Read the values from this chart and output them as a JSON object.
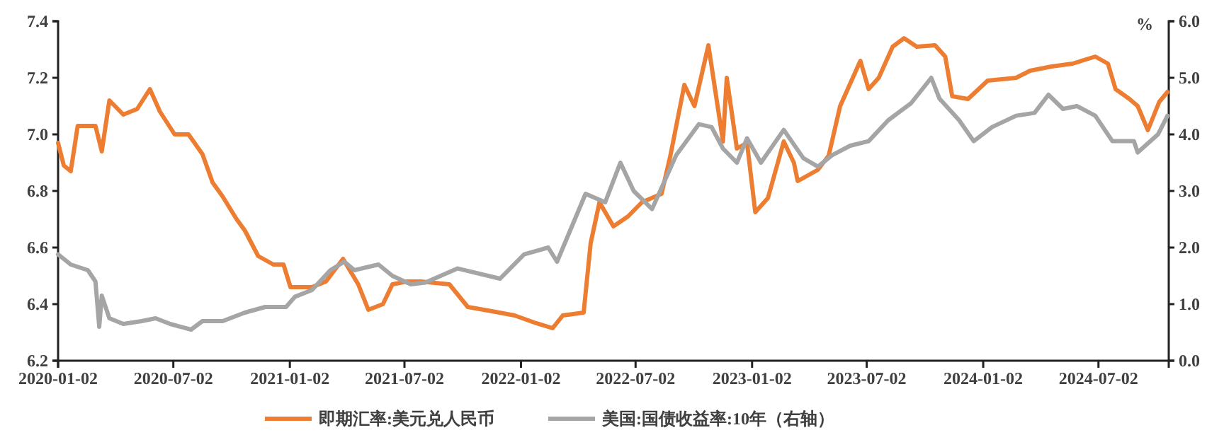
{
  "chart_data": {
    "type": "line",
    "legend": "bottom",
    "grid": false,
    "marker": "none",
    "line_style": "solid",
    "y2label": "%",
    "xlim": [
      "2020-01-02",
      "2024-10-21"
    ],
    "xticks": [
      "2020-01-02",
      "2020-07-02",
      "2021-01-02",
      "2021-07-02",
      "2022-01-02",
      "2022-07-02",
      "2023-01-02",
      "2023-07-02",
      "2024-01-02",
      "2024-07-02"
    ],
    "ylim": [
      6.2,
      7.4
    ],
    "yticks": [
      6.2,
      6.4,
      6.6,
      6.8,
      {
        "value": 7,
        "label": "7.0"
      },
      7.2,
      7.4
    ],
    "y2lim": [
      0,
      6
    ],
    "y2ticks": [
      {
        "value": 0,
        "label": "0.0"
      },
      {
        "value": 1,
        "label": "1.0"
      },
      {
        "value": 2,
        "label": "2.0"
      },
      {
        "value": 3,
        "label": "3.0"
      },
      {
        "value": 4,
        "label": "4.0"
      },
      {
        "value": 5,
        "label": "5.0"
      },
      {
        "value": 6,
        "label": "6.0"
      }
    ],
    "series": [
      {
        "name": "即期汇率:美元兑人民币",
        "color": "#ed7d31",
        "x": [
          "2020-01-02",
          "2020-01-11",
          "2020-01-22",
          "2020-02-02",
          "2020-03-01",
          "2020-03-11",
          "2020-03-23",
          "2020-04-14",
          "2020-05-06",
          "2020-05-26",
          "2020-06-11",
          "2020-07-04",
          "2020-07-26",
          "2020-08-17",
          "2020-09-02",
          "2020-09-18",
          "2020-10-10",
          "2020-10-23",
          "2020-11-13",
          "2020-12-07",
          "2020-12-23",
          "2021-01-03",
          "2021-02-06",
          "2021-02-28",
          "2021-03-27",
          "2021-04-20",
          "2021-05-06",
          "2021-05-29",
          "2021-06-13",
          "2021-07-06",
          "2021-07-28",
          "2021-09-11",
          "2021-10-10",
          "2021-11-17",
          "2021-12-23",
          "2022-01-23",
          "2022-02-21",
          "2022-03-09",
          "2022-04-11",
          "2022-04-22",
          "2022-05-06",
          "2022-05-28",
          "2022-06-20",
          "2022-07-12",
          "2022-08-12",
          "2022-08-26",
          "2022-09-17",
          "2022-10-03",
          "2022-10-25",
          "2022-11-17",
          "2022-11-23",
          "2022-12-09",
          "2022-12-25",
          "2023-01-07",
          "2023-01-27",
          "2023-02-21",
          "2023-03-09",
          "2023-03-15",
          "2023-04-16",
          "2023-05-03",
          "2023-05-21",
          "2023-06-22",
          "2023-07-05",
          "2023-07-21",
          "2023-08-12",
          "2023-08-30",
          "2023-09-19",
          "2023-10-18",
          "2023-11-03",
          "2023-11-14",
          "2023-12-09",
          "2024-01-09",
          "2024-02-23",
          "2024-03-16",
          "2024-04-19",
          "2024-05-22",
          "2024-06-27",
          "2024-07-17",
          "2024-07-29",
          "2024-08-20",
          "2024-09-02",
          "2024-09-18",
          "2024-10-06",
          "2024-10-19"
        ],
        "values": [
          6.97,
          6.89,
          6.87,
          7.03,
          7.03,
          6.94,
          7.12,
          7.07,
          7.09,
          7.16,
          7.08,
          7.0,
          7.0,
          6.93,
          6.83,
          6.78,
          6.7,
          6.66,
          6.57,
          6.54,
          6.54,
          6.46,
          6.46,
          6.48,
          6.56,
          6.47,
          6.38,
          6.4,
          6.47,
          6.48,
          6.48,
          6.47,
          6.39,
          6.375,
          6.36,
          6.335,
          6.315,
          6.36,
          6.37,
          6.615,
          6.76,
          6.675,
          6.71,
          6.76,
          6.79,
          6.925,
          7.175,
          7.1,
          7.315,
          6.975,
          7.2,
          6.95,
          6.97,
          6.725,
          6.775,
          6.975,
          6.9,
          6.835,
          6.875,
          6.925,
          7.1,
          7.26,
          7.16,
          7.2,
          7.31,
          7.34,
          7.31,
          7.315,
          7.275,
          7.135,
          7.125,
          7.19,
          7.2,
          7.225,
          7.24,
          7.25,
          7.275,
          7.25,
          7.16,
          7.125,
          7.1,
          7.015,
          7.115,
          7.15
        ]
      },
      {
        "name": "美国:国债收益率:10年（右轴）",
        "color": "#a5a5a5",
        "axis": "y2",
        "x": [
          "2020-01-02",
          "2020-01-22",
          "2020-02-18",
          "2020-03-01",
          "2020-03-07",
          "2020-03-11",
          "2020-03-23",
          "2020-04-14",
          "2020-05-13",
          "2020-06-04",
          "2020-06-27",
          "2020-07-30",
          "2020-08-17",
          "2020-09-18",
          "2020-10-23",
          "2020-11-24",
          "2020-12-27",
          "2021-01-10",
          "2021-02-06",
          "2021-03-07",
          "2021-03-29",
          "2021-04-14",
          "2021-05-22",
          "2021-06-13",
          "2021-07-12",
          "2021-08-04",
          "2021-09-24",
          "2021-11-30",
          "2022-01-07",
          "2022-02-14",
          "2022-02-28",
          "2022-04-14",
          "2022-05-15",
          "2022-06-08",
          "2022-06-29",
          "2022-07-28",
          "2022-09-04",
          "2022-10-10",
          "2022-10-30",
          "2022-11-17",
          "2022-12-09",
          "2022-12-25",
          "2023-01-16",
          "2023-02-21",
          "2023-03-24",
          "2023-04-16",
          "2023-05-08",
          "2023-06-06",
          "2023-07-05",
          "2023-08-05",
          "2023-09-10",
          "2023-10-12",
          "2023-10-25",
          "2023-11-25",
          "2023-12-18",
          "2024-01-16",
          "2024-02-23",
          "2024-03-23",
          "2024-04-14",
          "2024-05-07",
          "2024-05-29",
          "2024-06-27",
          "2024-07-24",
          "2024-08-27",
          "2024-09-02",
          "2024-10-04",
          "2024-10-19"
        ],
        "values": [
          1.88,
          1.7,
          1.6,
          1.4,
          0.6,
          1.15,
          0.75,
          0.65,
          0.7,
          0.75,
          0.65,
          0.55,
          0.7,
          0.7,
          0.85,
          0.95,
          0.95,
          1.13,
          1.25,
          1.6,
          1.75,
          1.6,
          1.7,
          1.5,
          1.35,
          1.38,
          1.63,
          1.45,
          1.88,
          2.0,
          1.75,
          2.95,
          2.8,
          3.5,
          3.0,
          2.68,
          3.63,
          4.18,
          4.13,
          3.75,
          3.5,
          3.93,
          3.5,
          4.08,
          3.58,
          3.43,
          3.63,
          3.8,
          3.88,
          4.25,
          4.55,
          5.0,
          4.63,
          4.25,
          3.88,
          4.13,
          4.33,
          4.38,
          4.7,
          4.45,
          4.5,
          4.33,
          3.88,
          3.88,
          3.68,
          4.0,
          4.33
        ]
      }
    ]
  }
}
